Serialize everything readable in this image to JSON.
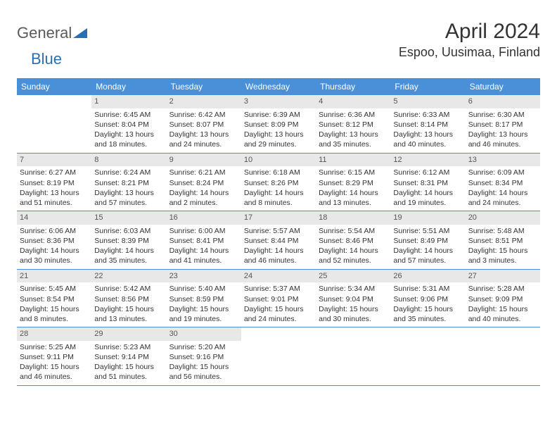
{
  "logo": {
    "word1": "General",
    "word2": "Blue"
  },
  "title": "April 2024",
  "location": "Espoo, Uusimaa, Finland",
  "colors": {
    "header_bg": "#4a90d9",
    "header_text": "#ffffff",
    "daynum_bg": "#e8e8e8",
    "daynum_text": "#555555",
    "body_text": "#333333",
    "divider": "#4a90d9",
    "logo_gray": "#5a5a5a",
    "logo_blue": "#2a6fb5"
  },
  "dayHeaders": [
    "Sunday",
    "Monday",
    "Tuesday",
    "Wednesday",
    "Thursday",
    "Friday",
    "Saturday"
  ],
  "weeks": [
    [
      {
        "empty": true
      },
      {
        "n": "1",
        "sunrise": "Sunrise: 6:45 AM",
        "sunset": "Sunset: 8:04 PM",
        "d1": "Daylight: 13 hours",
        "d2": "and 18 minutes."
      },
      {
        "n": "2",
        "sunrise": "Sunrise: 6:42 AM",
        "sunset": "Sunset: 8:07 PM",
        "d1": "Daylight: 13 hours",
        "d2": "and 24 minutes."
      },
      {
        "n": "3",
        "sunrise": "Sunrise: 6:39 AM",
        "sunset": "Sunset: 8:09 PM",
        "d1": "Daylight: 13 hours",
        "d2": "and 29 minutes."
      },
      {
        "n": "4",
        "sunrise": "Sunrise: 6:36 AM",
        "sunset": "Sunset: 8:12 PM",
        "d1": "Daylight: 13 hours",
        "d2": "and 35 minutes."
      },
      {
        "n": "5",
        "sunrise": "Sunrise: 6:33 AM",
        "sunset": "Sunset: 8:14 PM",
        "d1": "Daylight: 13 hours",
        "d2": "and 40 minutes."
      },
      {
        "n": "6",
        "sunrise": "Sunrise: 6:30 AM",
        "sunset": "Sunset: 8:17 PM",
        "d1": "Daylight: 13 hours",
        "d2": "and 46 minutes."
      }
    ],
    [
      {
        "n": "7",
        "sunrise": "Sunrise: 6:27 AM",
        "sunset": "Sunset: 8:19 PM",
        "d1": "Daylight: 13 hours",
        "d2": "and 51 minutes."
      },
      {
        "n": "8",
        "sunrise": "Sunrise: 6:24 AM",
        "sunset": "Sunset: 8:21 PM",
        "d1": "Daylight: 13 hours",
        "d2": "and 57 minutes."
      },
      {
        "n": "9",
        "sunrise": "Sunrise: 6:21 AM",
        "sunset": "Sunset: 8:24 PM",
        "d1": "Daylight: 14 hours",
        "d2": "and 2 minutes."
      },
      {
        "n": "10",
        "sunrise": "Sunrise: 6:18 AM",
        "sunset": "Sunset: 8:26 PM",
        "d1": "Daylight: 14 hours",
        "d2": "and 8 minutes."
      },
      {
        "n": "11",
        "sunrise": "Sunrise: 6:15 AM",
        "sunset": "Sunset: 8:29 PM",
        "d1": "Daylight: 14 hours",
        "d2": "and 13 minutes."
      },
      {
        "n": "12",
        "sunrise": "Sunrise: 6:12 AM",
        "sunset": "Sunset: 8:31 PM",
        "d1": "Daylight: 14 hours",
        "d2": "and 19 minutes."
      },
      {
        "n": "13",
        "sunrise": "Sunrise: 6:09 AM",
        "sunset": "Sunset: 8:34 PM",
        "d1": "Daylight: 14 hours",
        "d2": "and 24 minutes."
      }
    ],
    [
      {
        "n": "14",
        "sunrise": "Sunrise: 6:06 AM",
        "sunset": "Sunset: 8:36 PM",
        "d1": "Daylight: 14 hours",
        "d2": "and 30 minutes."
      },
      {
        "n": "15",
        "sunrise": "Sunrise: 6:03 AM",
        "sunset": "Sunset: 8:39 PM",
        "d1": "Daylight: 14 hours",
        "d2": "and 35 minutes."
      },
      {
        "n": "16",
        "sunrise": "Sunrise: 6:00 AM",
        "sunset": "Sunset: 8:41 PM",
        "d1": "Daylight: 14 hours",
        "d2": "and 41 minutes."
      },
      {
        "n": "17",
        "sunrise": "Sunrise: 5:57 AM",
        "sunset": "Sunset: 8:44 PM",
        "d1": "Daylight: 14 hours",
        "d2": "and 46 minutes."
      },
      {
        "n": "18",
        "sunrise": "Sunrise: 5:54 AM",
        "sunset": "Sunset: 8:46 PM",
        "d1": "Daylight: 14 hours",
        "d2": "and 52 minutes."
      },
      {
        "n": "19",
        "sunrise": "Sunrise: 5:51 AM",
        "sunset": "Sunset: 8:49 PM",
        "d1": "Daylight: 14 hours",
        "d2": "and 57 minutes."
      },
      {
        "n": "20",
        "sunrise": "Sunrise: 5:48 AM",
        "sunset": "Sunset: 8:51 PM",
        "d1": "Daylight: 15 hours",
        "d2": "and 3 minutes."
      }
    ],
    [
      {
        "n": "21",
        "sunrise": "Sunrise: 5:45 AM",
        "sunset": "Sunset: 8:54 PM",
        "d1": "Daylight: 15 hours",
        "d2": "and 8 minutes."
      },
      {
        "n": "22",
        "sunrise": "Sunrise: 5:42 AM",
        "sunset": "Sunset: 8:56 PM",
        "d1": "Daylight: 15 hours",
        "d2": "and 13 minutes."
      },
      {
        "n": "23",
        "sunrise": "Sunrise: 5:40 AM",
        "sunset": "Sunset: 8:59 PM",
        "d1": "Daylight: 15 hours",
        "d2": "and 19 minutes."
      },
      {
        "n": "24",
        "sunrise": "Sunrise: 5:37 AM",
        "sunset": "Sunset: 9:01 PM",
        "d1": "Daylight: 15 hours",
        "d2": "and 24 minutes."
      },
      {
        "n": "25",
        "sunrise": "Sunrise: 5:34 AM",
        "sunset": "Sunset: 9:04 PM",
        "d1": "Daylight: 15 hours",
        "d2": "and 30 minutes."
      },
      {
        "n": "26",
        "sunrise": "Sunrise: 5:31 AM",
        "sunset": "Sunset: 9:06 PM",
        "d1": "Daylight: 15 hours",
        "d2": "and 35 minutes."
      },
      {
        "n": "27",
        "sunrise": "Sunrise: 5:28 AM",
        "sunset": "Sunset: 9:09 PM",
        "d1": "Daylight: 15 hours",
        "d2": "and 40 minutes."
      }
    ],
    [
      {
        "n": "28",
        "sunrise": "Sunrise: 5:25 AM",
        "sunset": "Sunset: 9:11 PM",
        "d1": "Daylight: 15 hours",
        "d2": "and 46 minutes."
      },
      {
        "n": "29",
        "sunrise": "Sunrise: 5:23 AM",
        "sunset": "Sunset: 9:14 PM",
        "d1": "Daylight: 15 hours",
        "d2": "and 51 minutes."
      },
      {
        "n": "30",
        "sunrise": "Sunrise: 5:20 AM",
        "sunset": "Sunset: 9:16 PM",
        "d1": "Daylight: 15 hours",
        "d2": "and 56 minutes."
      },
      {
        "empty": true
      },
      {
        "empty": true
      },
      {
        "empty": true
      },
      {
        "empty": true
      }
    ]
  ]
}
